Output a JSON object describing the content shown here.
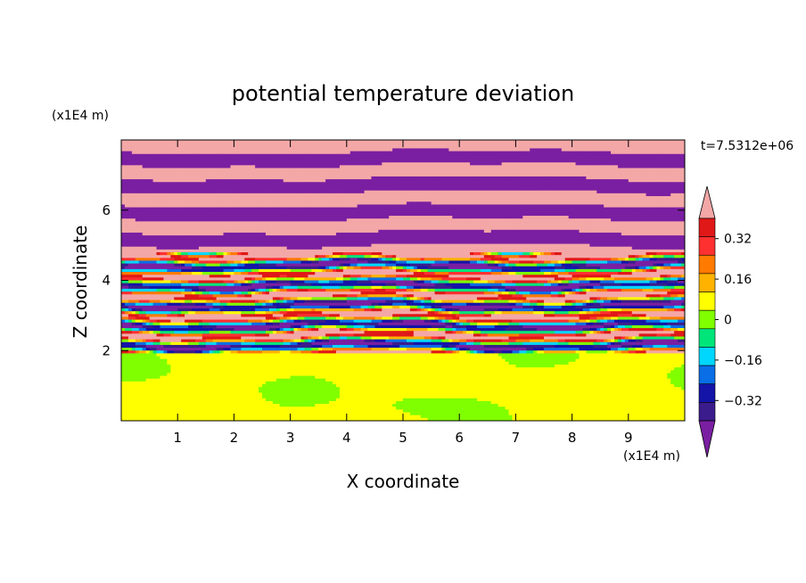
{
  "chart_data": {
    "type": "heatmap",
    "title": "potential temperature deviation",
    "xlabel": "X coordinate",
    "ylabel": "Z coordinate",
    "x_unit": "(x1E4 m)",
    "y_unit": "(x1E4 m)",
    "time_label": "t=7.5312e+06",
    "xlim": [
      0,
      10
    ],
    "ylim": [
      0,
      8
    ],
    "x_ticks": [
      "1",
      "2",
      "3",
      "4",
      "5",
      "6",
      "7",
      "8",
      "9"
    ],
    "y_ticks": [
      "2",
      "4",
      "6"
    ],
    "colorbar": {
      "levels": [
        -0.48,
        -0.4,
        -0.32,
        -0.24,
        -0.16,
        -0.08,
        0,
        0.08,
        0.16,
        0.24,
        0.32,
        0.4,
        0.48
      ],
      "colors": [
        "#7a1fa2",
        "#3b1c8c",
        "#1414a8",
        "#0a6ee6",
        "#00d7ff",
        "#00e57a",
        "#80ff00",
        "#ffff00",
        "#ffb300",
        "#ff7a00",
        "#ff3030",
        "#e01818",
        "#f4a7a7"
      ],
      "tick_labels": [
        "0.32",
        "0.16",
        "0",
        "-0.16",
        "-0.32"
      ]
    },
    "layers": [
      {
        "z_range": [
          0,
          1.9
        ],
        "dominant_value": 0.0,
        "note_value": "weakly negative patches"
      },
      {
        "z_range": [
          1.9,
          4.8
        ],
        "dominant_value": "mixed",
        "values_range": [
          -0.48,
          0.48
        ]
      },
      {
        "z_range": [
          4.8,
          8.0
        ],
        "dominant_value": "alternating",
        "values": [
          0.48,
          -0.48
        ]
      }
    ]
  }
}
